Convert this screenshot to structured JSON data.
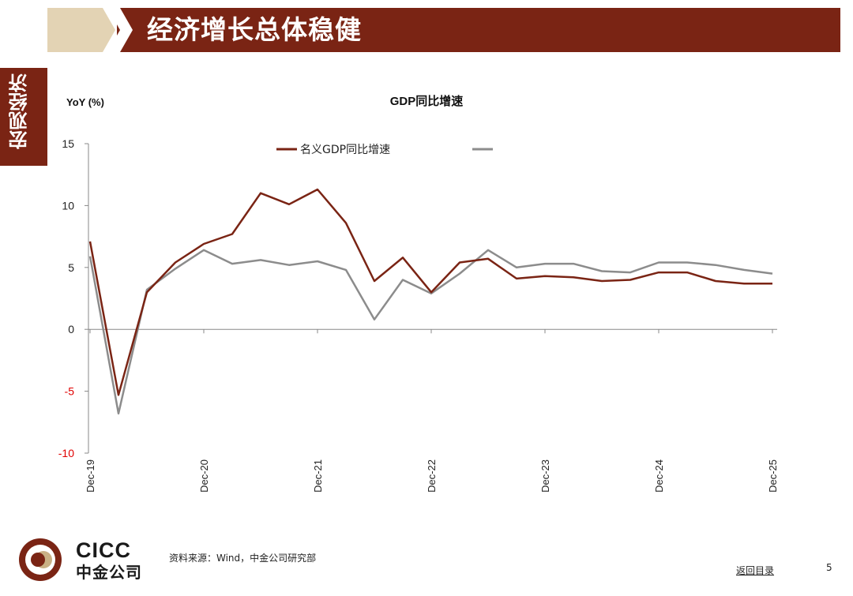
{
  "slide": {
    "title": "经济增长总体稳健",
    "section_tab": "宏观经济",
    "source": "资料来源：Wind，中金公司研究部",
    "back_link": "返回目录",
    "page_number": "5",
    "logo_en": "CICC",
    "logo_cn": "中金公司"
  },
  "colors": {
    "brand": "#7a2414",
    "nominal": "#7a2414",
    "real": "#8c8c8c",
    "negative_tick": "#e00000"
  },
  "chart_data": {
    "type": "line",
    "title": "GDP同比增速",
    "ylabel": "YoY (%)",
    "xlabel": "",
    "ylim": [
      -10,
      15
    ],
    "yticks": [
      15,
      10,
      5,
      0,
      -5,
      -10
    ],
    "x_tick_labels": [
      "Dec-19",
      "Dec-20",
      "Dec-21",
      "Dec-22",
      "Dec-23",
      "Dec-24",
      "Dec-25"
    ],
    "x": [
      "2019-Q4",
      "2020-Q1",
      "2020-Q2",
      "2020-Q3",
      "2020-Q4",
      "2021-Q1",
      "2021-Q2",
      "2021-Q3",
      "2021-Q4",
      "2022-Q1",
      "2022-Q2",
      "2022-Q3",
      "2022-Q4",
      "2023-Q1",
      "2023-Q2",
      "2023-Q3",
      "2023-Q4",
      "2024-Q1",
      "2024-Q2",
      "2024-Q3",
      "2024-Q4",
      "2025-Q1",
      "2025-Q2",
      "2025-Q3",
      "2025-Q4"
    ],
    "series": [
      {
        "name": "名义GDP同比增速",
        "color": "#7a2414",
        "values": [
          7.1,
          -5.3,
          3.0,
          5.4,
          6.9,
          7.7,
          11.0,
          10.1,
          11.3,
          8.6,
          3.9,
          5.8,
          3.0,
          5.4,
          5.7,
          4.1,
          4.3,
          4.2,
          3.9,
          4.0,
          4.6,
          4.6,
          3.9,
          3.7,
          3.7
        ]
      },
      {
        "name": "",
        "color": "#8c8c8c",
        "values": [
          5.9,
          -6.8,
          3.2,
          4.9,
          6.4,
          5.3,
          5.6,
          5.2,
          5.5,
          4.8,
          0.8,
          4.0,
          2.9,
          4.5,
          6.4,
          5.0,
          5.3,
          5.3,
          4.7,
          4.6,
          5.4,
          5.4,
          5.2,
          4.8,
          4.5
        ]
      }
    ],
    "legend": "top"
  }
}
